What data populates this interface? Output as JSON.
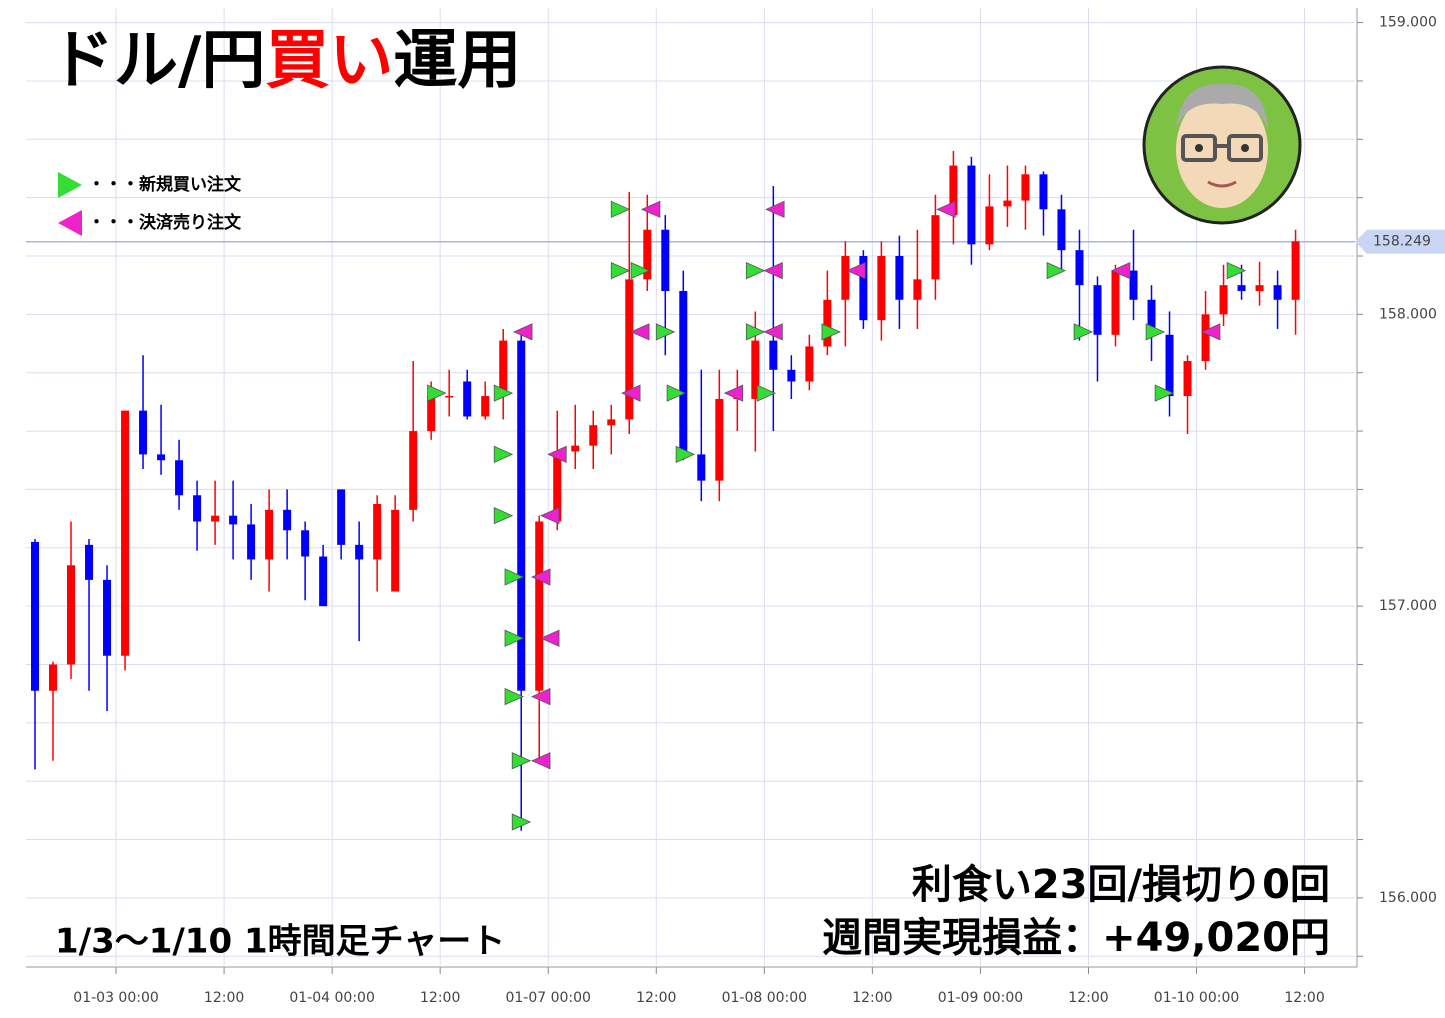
{
  "chart_data": {
    "type": "candlestick",
    "title": {
      "parts": [
        "ドル/円",
        "買い",
        "運用"
      ],
      "highlight": 1,
      "highlight_color": "#ff0000"
    },
    "subtitle": "1/3～1/10  1時間足チャート",
    "annotations": [
      "利食い23回/損切り0回",
      "週間実現損益：+49,020円"
    ],
    "up_color": "#ff0000",
    "down_color": "#0000ff",
    "ohlc": [
      [
        157.22,
        157.23,
        156.44,
        156.71
      ],
      [
        156.71,
        156.81,
        156.47,
        156.8
      ],
      [
        156.8,
        157.29,
        156.75,
        157.14
      ],
      [
        157.21,
        157.23,
        156.71,
        157.09
      ],
      [
        157.09,
        157.14,
        156.64,
        156.83
      ],
      [
        156.83,
        157.67,
        156.78,
        157.67
      ],
      [
        157.67,
        157.86,
        157.47,
        157.52
      ],
      [
        157.52,
        157.69,
        157.45,
        157.5
      ],
      [
        157.5,
        157.57,
        157.33,
        157.38
      ],
      [
        157.38,
        157.43,
        157.19,
        157.29
      ],
      [
        157.29,
        157.43,
        157.21,
        157.31
      ],
      [
        157.31,
        157.43,
        157.16,
        157.28
      ],
      [
        157.28,
        157.35,
        157.09,
        157.16
      ],
      [
        157.16,
        157.4,
        157.05,
        157.33
      ],
      [
        157.33,
        157.4,
        157.16,
        157.26
      ],
      [
        157.26,
        157.29,
        157.02,
        157.17
      ],
      [
        157.17,
        157.21,
        157.0,
        157.0
      ],
      [
        157.4,
        157.4,
        157.16,
        157.21
      ],
      [
        157.21,
        157.29,
        156.88,
        157.16
      ],
      [
        157.16,
        157.38,
        157.05,
        157.35
      ],
      [
        157.05,
        157.38,
        157.05,
        157.33
      ],
      [
        157.33,
        157.84,
        157.29,
        157.6
      ],
      [
        157.6,
        157.77,
        157.57,
        157.72
      ],
      [
        157.72,
        157.81,
        157.65,
        157.72
      ],
      [
        157.77,
        157.81,
        157.64,
        157.65
      ],
      [
        157.65,
        157.77,
        157.64,
        157.72
      ],
      [
        157.72,
        157.95,
        157.64,
        157.91
      ],
      [
        157.91,
        157.93,
        156.23,
        156.71
      ],
      [
        156.71,
        157.31,
        156.47,
        157.29
      ],
      [
        157.29,
        157.67,
        157.26,
        157.53
      ],
      [
        157.53,
        157.69,
        157.47,
        157.55
      ],
      [
        157.55,
        157.67,
        157.47,
        157.62
      ],
      [
        157.62,
        157.69,
        157.52,
        157.64
      ],
      [
        157.64,
        158.42,
        157.59,
        158.12
      ],
      [
        158.12,
        158.41,
        158.08,
        158.29
      ],
      [
        158.29,
        158.34,
        157.86,
        158.08
      ],
      [
        158.08,
        158.15,
        157.5,
        157.52
      ],
      [
        157.52,
        157.81,
        157.36,
        157.43
      ],
      [
        157.43,
        157.81,
        157.36,
        157.71
      ],
      [
        157.71,
        157.81,
        157.6,
        157.74
      ],
      [
        157.71,
        158.01,
        157.53,
        157.91
      ],
      [
        157.91,
        158.44,
        157.6,
        157.81
      ],
      [
        157.81,
        157.86,
        157.71,
        157.77
      ],
      [
        157.77,
        157.93,
        157.74,
        157.89
      ],
      [
        157.89,
        158.15,
        157.86,
        158.05
      ],
      [
        158.05,
        158.25,
        157.89,
        158.2
      ],
      [
        158.2,
        158.22,
        157.95,
        157.98
      ],
      [
        157.98,
        158.25,
        157.91,
        158.2
      ],
      [
        158.2,
        158.27,
        157.95,
        158.05
      ],
      [
        158.05,
        158.29,
        157.95,
        158.12
      ],
      [
        158.12,
        158.41,
        158.05,
        158.34
      ],
      [
        158.34,
        158.56,
        158.24,
        158.51
      ],
      [
        158.51,
        158.54,
        158.17,
        158.24
      ],
      [
        158.24,
        158.48,
        158.22,
        158.37
      ],
      [
        158.37,
        158.51,
        158.3,
        158.39
      ],
      [
        158.39,
        158.51,
        158.29,
        158.48
      ],
      [
        158.48,
        158.49,
        158.27,
        158.36
      ],
      [
        158.36,
        158.41,
        158.15,
        158.22
      ],
      [
        158.22,
        158.29,
        157.91,
        158.1
      ],
      [
        158.1,
        158.13,
        157.77,
        157.93
      ],
      [
        157.93,
        158.17,
        157.89,
        158.15
      ],
      [
        158.15,
        158.29,
        157.98,
        158.05
      ],
      [
        158.05,
        158.1,
        157.84,
        157.93
      ],
      [
        157.93,
        158.01,
        157.65,
        157.72
      ],
      [
        157.72,
        157.86,
        157.59,
        157.84
      ],
      [
        157.84,
        158.08,
        157.81,
        158.0
      ],
      [
        158.0,
        158.17,
        157.96,
        158.1
      ],
      [
        158.1,
        158.17,
        158.05,
        158.08
      ],
      [
        158.08,
        158.18,
        158.03,
        158.1
      ],
      [
        158.1,
        158.15,
        157.95,
        158.05
      ],
      [
        158.05,
        158.29,
        157.93,
        158.25
      ]
    ],
    "series": [
      {
        "name": "・・・新規買い注文",
        "color": "#33dd33",
        "marker": "right",
        "x": [
          22.3,
          26.0,
          26.0,
          26.0,
          26.6,
          26.6,
          26.6,
          27.0,
          27.0,
          32.5,
          32.5,
          33.6,
          35.0,
          35.6,
          36.1,
          40.0,
          40.0,
          40.6,
          44.2,
          56.7,
          58.2,
          62.2,
          62.7,
          66.7
        ],
        "values": [
          157.73,
          157.73,
          157.52,
          157.31,
          157.1,
          156.89,
          156.69,
          156.47,
          156.26,
          158.36,
          158.15,
          158.15,
          157.94,
          157.73,
          157.52,
          158.15,
          157.94,
          157.73,
          157.94,
          158.15,
          157.94,
          157.94,
          157.73,
          158.15
        ]
      },
      {
        "name": "・・・決済売り注文",
        "color": "#ee22cc",
        "marker": "left",
        "x": [
          27.1,
          34.2,
          33.6,
          33.1,
          29.0,
          28.6,
          28.1,
          28.6,
          28.1,
          28.1,
          41.1,
          41.0,
          41.0,
          38.8,
          45.6,
          50.6,
          60.3,
          65.3
        ],
        "values": [
          157.94,
          158.36,
          157.94,
          157.73,
          157.52,
          157.31,
          157.1,
          156.89,
          156.69,
          156.47,
          158.36,
          158.15,
          157.94,
          157.73,
          158.15,
          158.36,
          158.15,
          157.94
        ]
      }
    ],
    "last_price": {
      "value": 158.249,
      "label": "158.249"
    },
    "xlim": [
      -0.5,
      73.3
    ],
    "xticks": [
      {
        "value": 4.5,
        "label": "01-03 00:00"
      },
      {
        "value": 10.5,
        "label": "12:00"
      },
      {
        "value": 16.5,
        "label": "01-04 00:00"
      },
      {
        "value": 22.5,
        "label": "12:00"
      },
      {
        "value": 28.5,
        "label": "01-07 00:00"
      },
      {
        "value": 34.5,
        "label": "12:00"
      },
      {
        "value": 40.5,
        "label": "01-08 00:00"
      },
      {
        "value": 46.5,
        "label": "12:00"
      },
      {
        "value": 52.5,
        "label": "01-09 00:00"
      },
      {
        "value": 58.5,
        "label": "12:00"
      },
      {
        "value": 64.5,
        "label": "01-10 00:00"
      },
      {
        "value": 70.5,
        "label": "12:00"
      }
    ],
    "ylim": [
      155.77,
      159.05
    ],
    "yticks": [
      {
        "value": 159,
        "label": "159.000"
      },
      {
        "value": 158,
        "label": "158.000"
      },
      {
        "value": 157,
        "label": "157.000"
      },
      {
        "value": 156,
        "label": "156.000"
      }
    ],
    "minor_yticks": [
      155.8,
      156.2,
      156.4,
      156.6,
      156.8,
      157.2,
      157.4,
      157.6,
      157.8,
      158.2,
      158.4,
      158.6,
      158.8
    ],
    "grid": true
  }
}
